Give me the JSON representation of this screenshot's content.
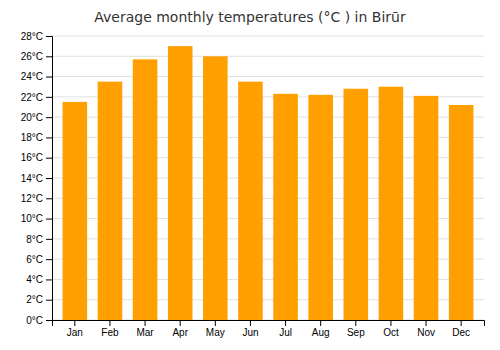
{
  "chart_data": {
    "type": "bar",
    "title": "Average monthly temperatures (°C ) in Birūr",
    "categories": [
      "Jan",
      "Feb",
      "Mar",
      "Apr",
      "May",
      "Jun",
      "Jul",
      "Aug",
      "Sep",
      "Oct",
      "Nov",
      "Dec"
    ],
    "values": [
      21.5,
      23.5,
      25.7,
      27.0,
      26.0,
      23.5,
      22.3,
      22.2,
      22.8,
      23.0,
      22.1,
      21.2
    ],
    "color": "#FFA000",
    "ylim": [
      0,
      28
    ],
    "yticks": [
      {
        "value": 0,
        "label": "0°C"
      },
      {
        "value": 2,
        "label": "2°C"
      },
      {
        "value": 4,
        "label": "4°C"
      },
      {
        "value": 6,
        "label": "6°C"
      },
      {
        "value": 8,
        "label": "8°C"
      },
      {
        "value": 10,
        "label": "10°C"
      },
      {
        "value": 12,
        "label": "12°C"
      },
      {
        "value": 14,
        "label": "14°C"
      },
      {
        "value": 16,
        "label": "16°C"
      },
      {
        "value": 18,
        "label": "18°C"
      },
      {
        "value": 20,
        "label": "20°C"
      },
      {
        "value": 22,
        "label": "22°C"
      },
      {
        "value": 24,
        "label": "24°C"
      },
      {
        "value": 26,
        "label": "26°C"
      },
      {
        "value": 28,
        "label": "28°C"
      }
    ],
    "grid": true
  }
}
